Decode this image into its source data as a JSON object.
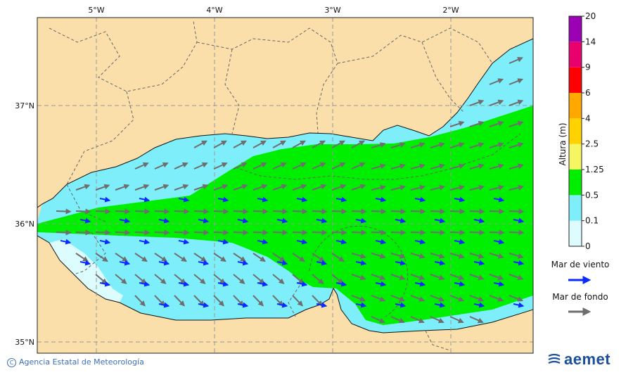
{
  "map": {
    "lon_labels": [
      "5°W",
      "4°W",
      "3°W",
      "2°W"
    ],
    "lat_labels": [
      "37°N",
      "36°N",
      "35°N"
    ],
    "colors": {
      "land": "#fbdfaa",
      "height_0_0_1": "#dcfcfd",
      "height_0_1_0_5": "#7eeefb",
      "height_0_5_1_25": "#00ee00",
      "wind_arrow": "#0a2aff",
      "swell_arrow": "#6e6e6e"
    }
  },
  "legend": {
    "title": "Altura (m)",
    "ticks": [
      "0",
      "0.1",
      "0.5",
      "1.25",
      "2.5",
      "4",
      "6",
      "9",
      "14",
      "20"
    ],
    "band_colors": [
      "#dcfcfd",
      "#7eeefb",
      "#00ee00",
      "#f6f665",
      "#ffd200",
      "#ffa800",
      "#ff0000",
      "#e8006e",
      "#9c00b4"
    ],
    "wind_label": "Mar de viento",
    "swell_label": "Mar de fondo"
  },
  "footer": {
    "credit": "Agencia Estatal de Meteorología",
    "brand": "aemet"
  }
}
